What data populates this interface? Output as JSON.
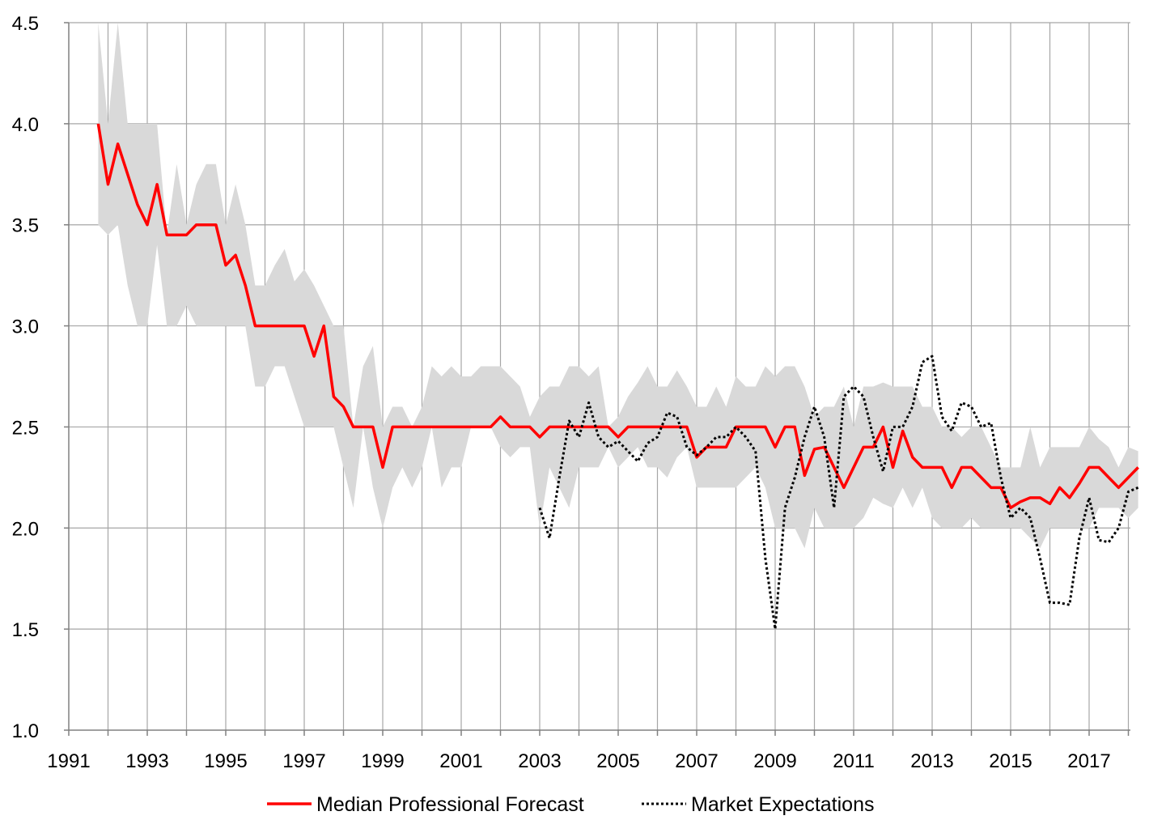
{
  "chart_data": {
    "type": "line",
    "title": "",
    "xlabel": "",
    "ylabel": "",
    "xlim": [
      1991.0,
      2018.3
    ],
    "ylim": [
      1.0,
      4.5
    ],
    "grid": true,
    "legend_position": "bottom-center",
    "x_ticks": [
      1991,
      1993,
      1995,
      1997,
      1999,
      2001,
      2003,
      2005,
      2007,
      2009,
      2011,
      2013,
      2015,
      2017
    ],
    "x_tick_labels": [
      "1991",
      "1993",
      "1995",
      "1997",
      "1999",
      "2001",
      "2003",
      "2005",
      "2007",
      "2009",
      "2011",
      "2013",
      "2015",
      "2017"
    ],
    "y_ticks": [
      1.0,
      1.5,
      2.0,
      2.5,
      3.0,
      3.5,
      4.0,
      4.5
    ],
    "y_tick_labels": [
      "1.0",
      "1.5",
      "2.0",
      "2.5",
      "3.0",
      "3.5",
      "4.0",
      "4.5"
    ],
    "range_band": {
      "color": "#d9d9d9",
      "x": [
        1991.75,
        1992.0,
        1992.25,
        1992.5,
        1992.75,
        1993.0,
        1993.25,
        1993.5,
        1993.75,
        1994.0,
        1994.25,
        1994.5,
        1994.75,
        1995.0,
        1995.25,
        1995.5,
        1995.75,
        1996.0,
        1996.25,
        1996.5,
        1996.75,
        1997.0,
        1997.25,
        1997.5,
        1997.75,
        1998.0,
        1998.25,
        1998.5,
        1998.75,
        1999.0,
        1999.25,
        1999.5,
        1999.75,
        2000.0,
        2000.25,
        2000.5,
        2000.75,
        2001.0,
        2001.25,
        2001.5,
        2001.75,
        2002.0,
        2002.25,
        2002.5,
        2002.75,
        2003.0,
        2003.25,
        2003.5,
        2003.75,
        2004.0,
        2004.25,
        2004.5,
        2004.75,
        2005.0,
        2005.25,
        2005.5,
        2005.75,
        2006.0,
        2006.25,
        2006.5,
        2006.75,
        2007.0,
        2007.25,
        2007.5,
        2007.75,
        2008.0,
        2008.25,
        2008.5,
        2008.75,
        2009.0,
        2009.25,
        2009.5,
        2009.75,
        2010.0,
        2010.25,
        2010.5,
        2010.75,
        2011.0,
        2011.25,
        2011.5,
        2011.75,
        2012.0,
        2012.25,
        2012.5,
        2012.75,
        2013.0,
        2013.25,
        2013.5,
        2013.75,
        2014.0,
        2014.25,
        2014.5,
        2014.75,
        2015.0,
        2015.25,
        2015.5,
        2015.75,
        2016.0,
        2016.25,
        2016.5,
        2016.75,
        2017.0,
        2017.25,
        2017.5,
        2017.75,
        2018.0,
        2018.25
      ],
      "low": [
        3.5,
        3.45,
        3.5,
        3.2,
        3.0,
        3.0,
        3.4,
        3.0,
        3.0,
        3.1,
        3.0,
        3.0,
        3.0,
        3.0,
        3.0,
        3.0,
        2.7,
        2.7,
        2.8,
        2.8,
        2.65,
        2.5,
        2.5,
        2.5,
        2.5,
        2.3,
        2.1,
        2.5,
        2.2,
        2.0,
        2.2,
        2.3,
        2.2,
        2.3,
        2.5,
        2.2,
        2.3,
        2.3,
        2.5,
        2.5,
        2.5,
        2.4,
        2.35,
        2.4,
        2.4,
        2.0,
        2.3,
        2.2,
        2.1,
        2.3,
        2.3,
        2.3,
        2.4,
        2.3,
        2.35,
        2.4,
        2.3,
        2.3,
        2.25,
        2.35,
        2.4,
        2.2,
        2.2,
        2.2,
        2.2,
        2.2,
        2.25,
        2.3,
        2.2,
        2.0,
        2.0,
        2.0,
        1.9,
        2.1,
        2.0,
        2.0,
        2.0,
        2.0,
        2.05,
        2.15,
        2.12,
        2.1,
        2.2,
        2.1,
        2.2,
        2.05,
        2.0,
        2.0,
        2.0,
        2.05,
        2.0,
        2.0,
        2.0,
        2.0,
        2.0,
        1.95,
        1.9,
        2.0,
        2.0,
        2.0,
        2.0,
        2.0,
        2.1,
        2.1,
        2.1,
        2.05,
        2.1
      ],
      "high": [
        4.5,
        4.0,
        4.5,
        4.0,
        4.0,
        4.0,
        4.0,
        3.45,
        3.8,
        3.5,
        3.7,
        3.8,
        3.8,
        3.5,
        3.7,
        3.5,
        3.2,
        3.2,
        3.3,
        3.38,
        3.22,
        3.28,
        3.2,
        3.1,
        3.0,
        3.0,
        2.5,
        2.8,
        2.9,
        2.5,
        2.6,
        2.6,
        2.5,
        2.6,
        2.8,
        2.75,
        2.8,
        2.75,
        2.75,
        2.8,
        2.8,
        2.8,
        2.75,
        2.7,
        2.55,
        2.65,
        2.7,
        2.7,
        2.8,
        2.8,
        2.75,
        2.8,
        2.5,
        2.55,
        2.65,
        2.72,
        2.8,
        2.7,
        2.7,
        2.78,
        2.7,
        2.6,
        2.6,
        2.7,
        2.6,
        2.75,
        2.7,
        2.7,
        2.8,
        2.75,
        2.8,
        2.8,
        2.7,
        2.55,
        2.6,
        2.6,
        2.7,
        2.5,
        2.7,
        2.7,
        2.72,
        2.7,
        2.7,
        2.7,
        2.6,
        2.6,
        2.5,
        2.5,
        2.45,
        2.5,
        2.5,
        2.4,
        2.3,
        2.3,
        2.3,
        2.5,
        2.3,
        2.4,
        2.4,
        2.4,
        2.4,
        2.5,
        2.44,
        2.4,
        2.3,
        2.4,
        2.38
      ]
    },
    "series": [
      {
        "name": "Median Professional Forecast",
        "color": "#ff0000",
        "style": "solid",
        "x": [
          1991.75,
          1992.0,
          1992.25,
          1992.5,
          1992.75,
          1993.0,
          1993.25,
          1993.5,
          1993.75,
          1994.0,
          1994.25,
          1994.5,
          1994.75,
          1995.0,
          1995.25,
          1995.5,
          1995.75,
          1996.0,
          1996.25,
          1996.5,
          1996.75,
          1997.0,
          1997.25,
          1997.5,
          1997.75,
          1998.0,
          1998.25,
          1998.5,
          1998.75,
          1999.0,
          1999.25,
          1999.5,
          1999.75,
          2000.0,
          2000.25,
          2000.5,
          2000.75,
          2001.0,
          2001.25,
          2001.5,
          2001.75,
          2002.0,
          2002.25,
          2002.5,
          2002.75,
          2003.0,
          2003.25,
          2003.5,
          2003.75,
          2004.0,
          2004.25,
          2004.5,
          2004.75,
          2005.0,
          2005.25,
          2005.5,
          2005.75,
          2006.0,
          2006.25,
          2006.5,
          2006.75,
          2007.0,
          2007.25,
          2007.5,
          2007.75,
          2008.0,
          2008.25,
          2008.5,
          2008.75,
          2009.0,
          2009.25,
          2009.5,
          2009.75,
          2010.0,
          2010.25,
          2010.5,
          2010.75,
          2011.0,
          2011.25,
          2011.5,
          2011.75,
          2012.0,
          2012.25,
          2012.5,
          2012.75,
          2013.0,
          2013.25,
          2013.5,
          2013.75,
          2014.0,
          2014.25,
          2014.5,
          2014.75,
          2015.0,
          2015.25,
          2015.5,
          2015.75,
          2016.0,
          2016.25,
          2016.5,
          2016.75,
          2017.0,
          2017.25,
          2017.5,
          2017.75,
          2018.0,
          2018.25
        ],
        "values": [
          4.0,
          3.7,
          3.9,
          3.75,
          3.6,
          3.5,
          3.7,
          3.45,
          3.45,
          3.45,
          3.5,
          3.5,
          3.5,
          3.3,
          3.35,
          3.2,
          3.0,
          3.0,
          3.0,
          3.0,
          3.0,
          3.0,
          2.85,
          3.0,
          2.65,
          2.6,
          2.5,
          2.5,
          2.5,
          2.3,
          2.5,
          2.5,
          2.5,
          2.5,
          2.5,
          2.5,
          2.5,
          2.5,
          2.5,
          2.5,
          2.5,
          2.55,
          2.5,
          2.5,
          2.5,
          2.45,
          2.5,
          2.5,
          2.5,
          2.5,
          2.5,
          2.5,
          2.5,
          2.45,
          2.5,
          2.5,
          2.5,
          2.5,
          2.5,
          2.5,
          2.5,
          2.35,
          2.4,
          2.4,
          2.4,
          2.5,
          2.5,
          2.5,
          2.5,
          2.4,
          2.5,
          2.5,
          2.26,
          2.39,
          2.4,
          2.3,
          2.2,
          2.3,
          2.4,
          2.4,
          2.5,
          2.3,
          2.48,
          2.35,
          2.3,
          2.3,
          2.3,
          2.2,
          2.3,
          2.3,
          2.25,
          2.2,
          2.2,
          2.1,
          2.13,
          2.15,
          2.15,
          2.12,
          2.2,
          2.15,
          2.22,
          2.3,
          2.3,
          2.25,
          2.2,
          2.25,
          2.3
        ]
      },
      {
        "name": "Market Expectations",
        "color": "#000000",
        "style": "dotted",
        "x": [
          2003.0,
          2003.25,
          2003.5,
          2003.75,
          2004.0,
          2004.25,
          2004.5,
          2004.75,
          2005.0,
          2005.25,
          2005.5,
          2005.75,
          2006.0,
          2006.25,
          2006.5,
          2006.75,
          2007.0,
          2007.25,
          2007.5,
          2007.75,
          2008.0,
          2008.25,
          2008.5,
          2008.75,
          2009.0,
          2009.25,
          2009.5,
          2009.75,
          2010.0,
          2010.25,
          2010.5,
          2010.75,
          2011.0,
          2011.25,
          2011.5,
          2011.75,
          2012.0,
          2012.25,
          2012.5,
          2012.75,
          2013.0,
          2013.25,
          2013.5,
          2013.75,
          2014.0,
          2014.25,
          2014.5,
          2014.75,
          2015.0,
          2015.25,
          2015.5,
          2015.75,
          2016.0,
          2016.25,
          2016.5,
          2016.75,
          2017.0,
          2017.25,
          2017.5,
          2017.75,
          2018.0,
          2018.25
        ],
        "values": [
          2.1,
          1.95,
          2.25,
          2.53,
          2.45,
          2.62,
          2.45,
          2.4,
          2.43,
          2.38,
          2.33,
          2.42,
          2.45,
          2.57,
          2.55,
          2.4,
          2.36,
          2.4,
          2.45,
          2.45,
          2.5,
          2.45,
          2.38,
          1.85,
          1.5,
          2.1,
          2.25,
          2.45,
          2.6,
          2.45,
          2.1,
          2.65,
          2.7,
          2.65,
          2.45,
          2.28,
          2.5,
          2.5,
          2.6,
          2.82,
          2.85,
          2.55,
          2.48,
          2.62,
          2.6,
          2.5,
          2.52,
          2.25,
          2.05,
          2.1,
          2.05,
          1.85,
          1.63,
          1.63,
          1.62,
          1.95,
          2.15,
          1.94,
          1.93,
          2.0,
          2.18,
          2.2
        ]
      }
    ],
    "legend": [
      {
        "label": "Median Professional Forecast",
        "color": "#ff0000",
        "style": "solid"
      },
      {
        "label": "Market Expectations",
        "color": "#000000",
        "style": "dotted"
      }
    ]
  }
}
